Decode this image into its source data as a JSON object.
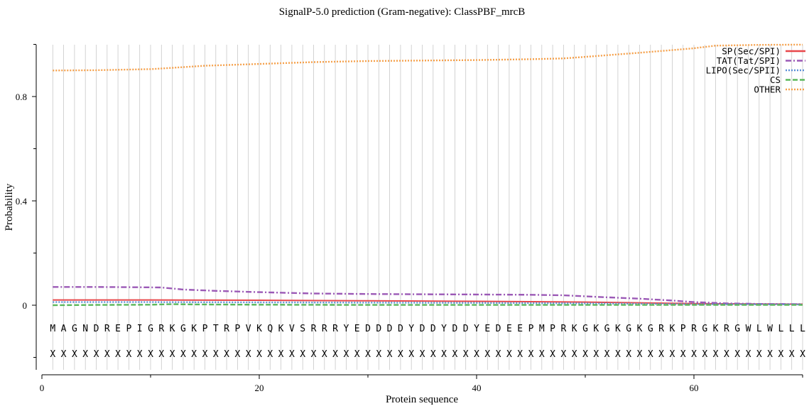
{
  "chart_data": {
    "type": "line",
    "title": "SignalP-5.0 prediction (Gram-negative):  ClassPBF_mrcB",
    "xlabel": "Protein sequence",
    "ylabel": "Probability",
    "xlim": [
      0,
      70
    ],
    "ylim": [
      -0.25,
      1.0
    ],
    "x_ticks": [
      0,
      20,
      40,
      60
    ],
    "x_minor_ticks": [
      10,
      30,
      50,
      70
    ],
    "y_ticks": [
      0,
      0.4,
      0.8
    ],
    "y_tick_labels": [
      "0",
      "0.4",
      "0.8"
    ],
    "y_minor_ticks": [
      -0.2,
      0.2,
      0.6,
      1.0
    ],
    "grid": "vertical line at each residue",
    "legend_position": "top-right",
    "sequence": [
      "M",
      "A",
      "G",
      "N",
      "D",
      "R",
      "E",
      "P",
      "I",
      "G",
      "R",
      "K",
      "G",
      "K",
      "P",
      "T",
      "R",
      "P",
      "V",
      "K",
      "Q",
      "K",
      "V",
      "S",
      "R",
      "R",
      "R",
      "Y",
      "E",
      "D",
      "D",
      "D",
      "D",
      "Y",
      "D",
      "D",
      "Y",
      "D",
      "D",
      "Y",
      "E",
      "D",
      "E",
      "E",
      "P",
      "M",
      "P",
      "R",
      "K",
      "G",
      "K",
      "G",
      "K",
      "G",
      "K",
      "G",
      "R",
      "K",
      "P",
      "R",
      "G",
      "K",
      "R",
      "G",
      "W",
      "L",
      "W",
      "L",
      "L",
      "L"
    ],
    "annotation": [
      "X",
      "X",
      "X",
      "X",
      "X",
      "X",
      "X",
      "X",
      "X",
      "X",
      "X",
      "X",
      "X",
      "X",
      "X",
      "X",
      "X",
      "X",
      "X",
      "X",
      "X",
      "X",
      "X",
      "X",
      "X",
      "X",
      "X",
      "X",
      "X",
      "X",
      "X",
      "X",
      "X",
      "X",
      "X",
      "X",
      "X",
      "X",
      "X",
      "X",
      "X",
      "X",
      "X",
      "X",
      "X",
      "X",
      "X",
      "X",
      "X",
      "X",
      "X",
      "X",
      "X",
      "X",
      "X",
      "X",
      "X",
      "X",
      "X",
      "X",
      "X",
      "X",
      "X",
      "X",
      "X",
      "X",
      "X",
      "X",
      "X",
      "X"
    ],
    "series": [
      {
        "name": "SP(Sec/SPI)",
        "color": "#e8474a",
        "dash": "solid",
        "x": [
          1,
          10,
          20,
          30,
          40,
          50,
          60,
          70
        ],
        "y": [
          0.02,
          0.02,
          0.019,
          0.017,
          0.015,
          0.012,
          0.006,
          0.004
        ]
      },
      {
        "name": "TAT(Tat/SPI)",
        "color": "#9b59b6",
        "dash": "dash-dot",
        "x": [
          1,
          5,
          8,
          11,
          13,
          16,
          20,
          25,
          30,
          35,
          40,
          45,
          48,
          51,
          55,
          58,
          60,
          63,
          66,
          70
        ],
        "y": [
          0.07,
          0.07,
          0.069,
          0.068,
          0.06,
          0.055,
          0.05,
          0.045,
          0.043,
          0.042,
          0.041,
          0.04,
          0.038,
          0.032,
          0.025,
          0.018,
          0.012,
          0.007,
          0.005,
          0.004
        ]
      },
      {
        "name": "LIPO(Sec/SPII)",
        "color": "#5b8fd6",
        "dash": "dotted",
        "x": [
          1,
          10,
          20,
          30,
          40,
          50,
          60,
          70
        ],
        "y": [
          0.012,
          0.012,
          0.011,
          0.01,
          0.009,
          0.007,
          0.004,
          0.003
        ]
      },
      {
        "name": "CS",
        "color": "#5cb85c",
        "dash": "dashed",
        "x": [
          1,
          5,
          10,
          12,
          14,
          20,
          30,
          40,
          50,
          60,
          70
        ],
        "y": [
          0.0,
          0.001,
          0.002,
          0.004,
          0.003,
          0.002,
          0.001,
          0.001,
          0.001,
          0.001,
          0.001
        ]
      },
      {
        "name": "OTHER",
        "color": "#f5a04a",
        "dash": "dotted",
        "x": [
          1,
          5,
          10,
          12,
          15,
          20,
          25,
          30,
          35,
          40,
          45,
          48,
          50,
          55,
          58,
          60,
          62,
          66,
          70
        ],
        "y": [
          0.9,
          0.901,
          0.905,
          0.91,
          0.918,
          0.925,
          0.932,
          0.936,
          0.938,
          0.94,
          0.943,
          0.946,
          0.952,
          0.968,
          0.978,
          0.985,
          0.995,
          0.998,
          0.999
        ]
      }
    ]
  }
}
